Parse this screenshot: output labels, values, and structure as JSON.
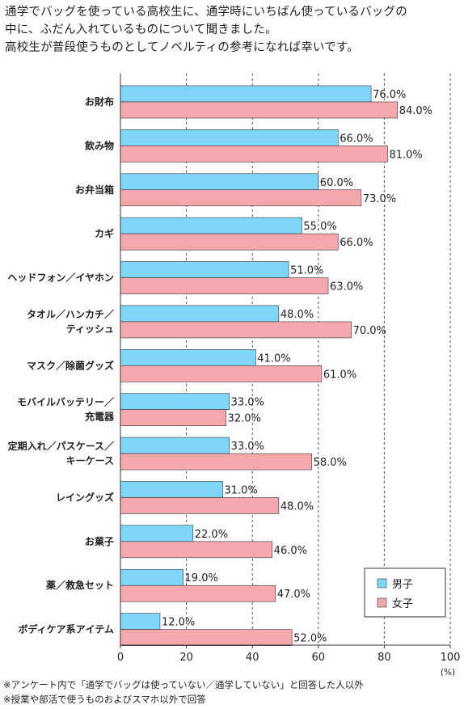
{
  "intro": {
    "lines": [
      "通学でバッグを使っている高校生に、通学時にいちばん使っているバッグの",
      "中に、ふだん入れているものについて聞きました。",
      "高校生が普段使うものとしてノベルティの参考になれば幸いです。"
    ]
  },
  "chart_data": {
    "type": "bar",
    "orientation": "horizontal",
    "categories": [
      [
        "お財布"
      ],
      [
        "飲み物"
      ],
      [
        "お弁当箱"
      ],
      [
        "カギ"
      ],
      [
        "ヘッドフォン／イヤホン"
      ],
      [
        "タオル／ハンカチ／",
        "ティッシュ"
      ],
      [
        "マスク／除菌グッズ"
      ],
      [
        "モバイルバッテリー／",
        "充電器"
      ],
      [
        "定期入れ／パスケース／",
        "キーケース"
      ],
      [
        "レイングッズ"
      ],
      [
        "お菓子"
      ],
      [
        "薬／救急セット"
      ],
      [
        "ボディケア系アイテム"
      ]
    ],
    "series": [
      {
        "name": "男子",
        "color": "#7fd6f6",
        "values": [
          76.0,
          66.0,
          60.0,
          55.0,
          51.0,
          48.0,
          41.0,
          33.0,
          33.0,
          31.0,
          22.0,
          19.0,
          12.0
        ],
        "labels": [
          "76.0%",
          "66.0%",
          "60.0%",
          "55.0%",
          "51.0%",
          "48.0%",
          "41.0%",
          "33.0%",
          "33.0%",
          "31.0%",
          "22.0%",
          "19.0%",
          "12.0%"
        ]
      },
      {
        "name": "女子",
        "color": "#f6a8af",
        "values": [
          84.0,
          81.0,
          73.0,
          66.0,
          63.0,
          70.0,
          61.0,
          32.0,
          58.0,
          48.0,
          46.0,
          47.0,
          52.0
        ],
        "labels": [
          "84.0%",
          "81.0%",
          "73.0%",
          "66.0%",
          "63.0%",
          "70.0%",
          "61.0%",
          "32.0%",
          "58.0%",
          "48.0%",
          "46.0%",
          "47.0%",
          "52.0%"
        ]
      }
    ],
    "xlim": [
      0,
      100
    ],
    "xticks": [
      "0",
      "20",
      "40",
      "60",
      "80",
      "100"
    ],
    "xunit": "(%)",
    "grid": true,
    "grid_style": "dashed-vertical",
    "legend_position": "bottom-right",
    "bar_border": "#333333"
  },
  "notes": [
    "※アンケート内で「通学でバッグは使っていない／通学していない」と回答した人以外",
    "※授業や部活で使うものおよびスマホ以外で回答"
  ]
}
